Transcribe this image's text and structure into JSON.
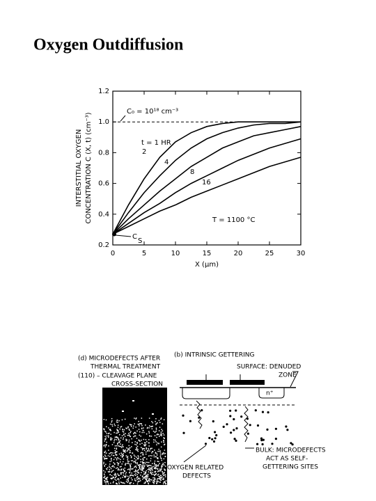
{
  "title": "Oxygen Outdiffusion",
  "chart_data": {
    "type": "line",
    "ylabel": [
      "INTERSTITIAL OXYGEN",
      "CONCENTRATION C (X, t) (cm⁻³)"
    ],
    "xlabel": "X (μm)",
    "x": [
      0,
      2.5,
      5,
      7.5,
      10,
      12.5,
      15,
      17.5,
      20,
      22.5,
      25,
      27.5,
      30
    ],
    "series": [
      {
        "name": "t = 1 HR",
        "color": "#000000",
        "values": [
          0.27,
          0.46,
          0.63,
          0.77,
          0.87,
          0.93,
          0.97,
          0.99,
          1.0,
          1.0,
          1.0,
          1.0,
          1.0
        ]
      },
      {
        "name": "2",
        "color": "#000000",
        "values": [
          0.27,
          0.41,
          0.54,
          0.65,
          0.75,
          0.83,
          0.89,
          0.93,
          0.96,
          0.98,
          0.99,
          0.99,
          1.0
        ]
      },
      {
        "name": "4",
        "color": "#000000",
        "values": [
          0.27,
          0.37,
          0.46,
          0.55,
          0.63,
          0.71,
          0.77,
          0.83,
          0.87,
          0.91,
          0.93,
          0.95,
          0.97
        ]
      },
      {
        "name": "8",
        "color": "#000000",
        "values": [
          0.27,
          0.34,
          0.41,
          0.47,
          0.54,
          0.6,
          0.65,
          0.7,
          0.75,
          0.79,
          0.83,
          0.86,
          0.89
        ]
      },
      {
        "name": "16",
        "color": "#000000",
        "values": [
          0.27,
          0.32,
          0.37,
          0.42,
          0.46,
          0.51,
          0.55,
          0.59,
          0.63,
          0.67,
          0.71,
          0.74,
          0.77
        ]
      }
    ],
    "xlim": [
      0,
      30
    ],
    "xticks": [
      0,
      5,
      10,
      15,
      20,
      25,
      30
    ],
    "ylim": [
      0.2,
      1.2
    ],
    "yticks": [
      0.2,
      0.4,
      0.6,
      0.8,
      {
        "value": 1,
        "label": "1.0"
      },
      1.2
    ],
    "reference": {
      "value": 1,
      "label": "C₀ = 10¹⁸ cm⁻³"
    },
    "annotations": [
      "T = 1100 °C"
    ],
    "surface_label": [
      "C",
      "S"
    ]
  },
  "figure": {
    "left": {
      "caption": [
        "(d) MICRODEFECTS AFTER",
        "THERMAL TREATMENT",
        "(110) – CLEAVAGE PLANE",
        "CROSS-SECTION"
      ]
    },
    "right": {
      "caption": "(b) INTRINSIC GETTERING",
      "surface": [
        "SURFACE: DENUDED",
        "ZONE"
      ],
      "nplus": "n⁺",
      "bulk": [
        "BULK: MICRODEFECTS",
        "ACT AS SELF-",
        "GETTERING SITES"
      ],
      "defects": [
        "OXYGEN RELATED",
        "DEFECTS"
      ]
    }
  }
}
